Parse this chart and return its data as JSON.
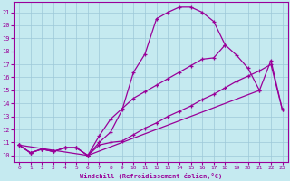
{
  "bg_color": "#c5eaf0",
  "grid_color": "#9dc8d8",
  "line_color": "#990099",
  "xlabel": "Windchill (Refroidissement éolien,°C)",
  "xlim": [
    -0.5,
    23.5
  ],
  "ylim": [
    9.5,
    21.8
  ],
  "yticks": [
    10,
    11,
    12,
    13,
    14,
    15,
    16,
    17,
    18,
    19,
    20,
    21
  ],
  "xticks": [
    0,
    1,
    2,
    3,
    4,
    5,
    6,
    7,
    8,
    9,
    10,
    11,
    12,
    13,
    14,
    15,
    16,
    17,
    18,
    19,
    20,
    21,
    22,
    23
  ],
  "curve1_x": [
    0,
    1,
    2,
    3,
    4,
    5,
    6,
    7,
    8,
    9,
    10,
    11,
    12,
    13,
    14,
    15,
    16,
    17,
    18,
    19,
    20,
    21
  ],
  "curve1_y": [
    10.8,
    10.2,
    10.5,
    10.3,
    10.6,
    10.6,
    10.0,
    11.0,
    11.8,
    13.5,
    16.4,
    17.8,
    20.5,
    21.0,
    21.4,
    21.4,
    21.0,
    20.3,
    18.5,
    17.7,
    16.7,
    15.0
  ],
  "curve2_x": [
    0,
    1,
    2,
    3,
    4,
    5,
    6,
    7,
    8,
    9,
    10,
    11,
    12,
    13,
    14,
    15,
    16,
    17,
    18,
    19,
    20,
    21,
    22,
    23
  ],
  "curve2_y": [
    10.8,
    10.2,
    10.5,
    10.3,
    10.6,
    10.6,
    10.0,
    11.5,
    12.8,
    13.6,
    14.4,
    14.9,
    15.4,
    15.9,
    16.4,
    16.9,
    17.4,
    17.5,
    18.5,
    null,
    null,
    null,
    null,
    null
  ],
  "curve3_x": [
    0,
    6,
    21,
    22,
    23
  ],
  "curve3_y": [
    10.8,
    10.0,
    15.0,
    17.3,
    13.5
  ],
  "curve4_x": [
    0,
    1,
    2,
    3,
    4,
    5,
    6,
    7,
    8,
    9,
    10,
    11,
    12,
    13,
    14,
    15,
    16,
    17,
    18,
    19,
    20,
    21,
    22,
    23
  ],
  "curve4_y": [
    10.8,
    10.2,
    10.5,
    10.3,
    10.6,
    10.6,
    10.0,
    10.8,
    11.0,
    11.1,
    11.6,
    12.1,
    12.5,
    13.0,
    13.4,
    13.8,
    14.3,
    14.7,
    15.2,
    15.7,
    16.1,
    16.5,
    17.0,
    13.5
  ]
}
